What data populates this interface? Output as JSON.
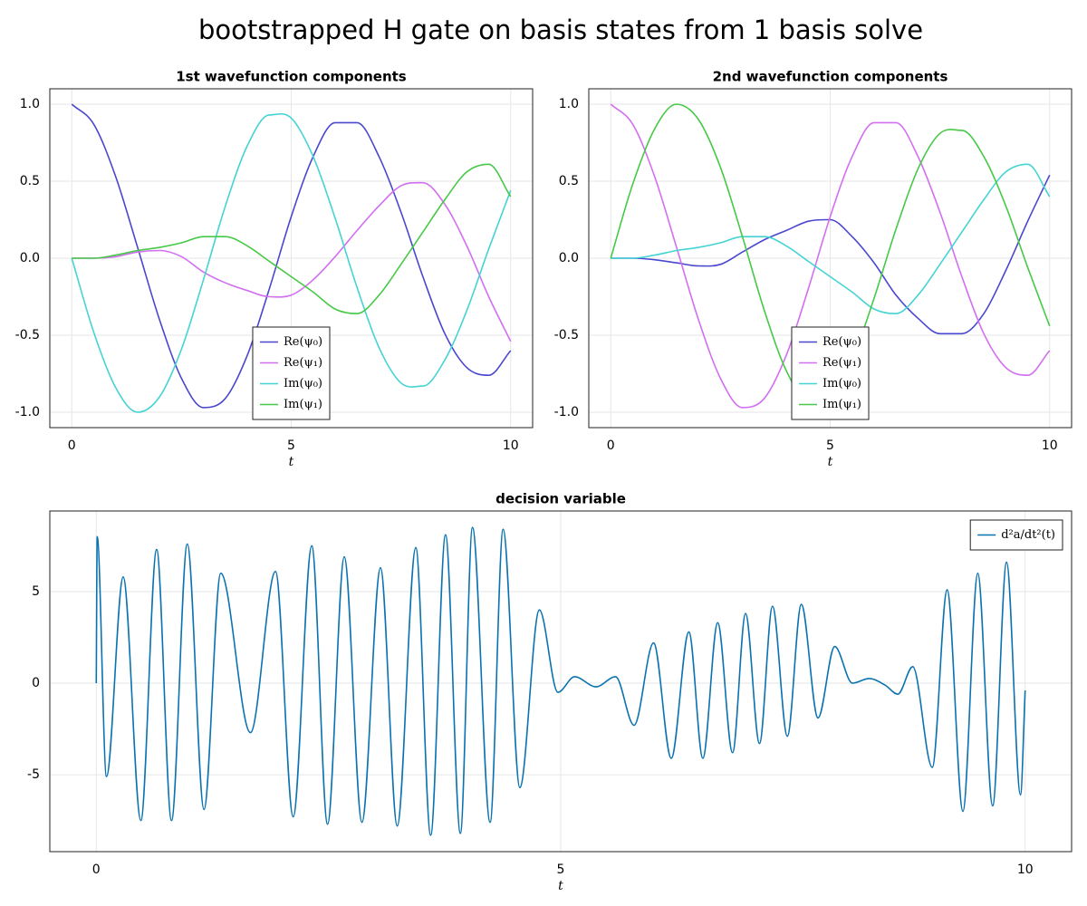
{
  "title": "bootstrapped H gate on basis states from 1 basis solve",
  "chart_data": [
    {
      "type": "line",
      "title": "1st wavefunction components",
      "xlabel": "t",
      "x": [
        0,
        0.5,
        1,
        1.5,
        2,
        2.5,
        3,
        3.5,
        4,
        4.5,
        5,
        5.5,
        6,
        6.5,
        7,
        7.5,
        8,
        8.5,
        9,
        9.5,
        10
      ],
      "series": [
        {
          "name": "Re(ψ₀)",
          "color": "#4a47cf",
          "values": [
            1.0,
            0.87,
            0.53,
            0.07,
            -0.4,
            -0.78,
            -0.97,
            -0.91,
            -0.63,
            -0.2,
            0.27,
            0.66,
            0.88,
            0.88,
            0.66,
            0.3,
            -0.12,
            -0.49,
            -0.71,
            -0.76,
            -0.6
          ]
        },
        {
          "name": "Re(ψ₁)",
          "color": "#d26ff0",
          "values": [
            0,
            0,
            0.01,
            0.04,
            0.05,
            0.01,
            -0.09,
            -0.16,
            -0.21,
            -0.25,
            -0.24,
            -0.14,
            0.01,
            0.18,
            0.34,
            0.47,
            0.49,
            0.35,
            0.08,
            -0.25,
            -0.54
          ]
        },
        {
          "name": "Im(ψ₀)",
          "color": "#45d3d3",
          "values": [
            0,
            -0.48,
            -0.84,
            -1.0,
            -0.9,
            -0.59,
            -0.14,
            0.34,
            0.73,
            0.93,
            0.91,
            0.66,
            0.26,
            -0.19,
            -0.58,
            -0.81,
            -0.83,
            -0.66,
            -0.34,
            0.06,
            0.44
          ]
        },
        {
          "name": "Im(ψ₁)",
          "color": "#46c946",
          "values": [
            0,
            0,
            0.02,
            0.05,
            0.07,
            0.1,
            0.14,
            0.14,
            0.08,
            -0.02,
            -0.12,
            -0.22,
            -0.33,
            -0.36,
            -0.24,
            -0.04,
            0.17,
            0.38,
            0.56,
            0.61,
            0.4
          ]
        }
      ],
      "xlim": [
        -0.5,
        10.5
      ],
      "ylim": [
        -1.1,
        1.1
      ],
      "xticks": [
        0,
        5,
        10
      ],
      "yticks": [
        {
          "value": -1,
          "label": "-1.0"
        },
        -0.5,
        {
          "value": 0,
          "label": "0.0"
        },
        0.5,
        {
          "value": 1,
          "label": "1.0"
        }
      ],
      "grid": true,
      "legend": "lower center"
    },
    {
      "type": "line",
      "title": "2nd wavefunction components",
      "xlabel": "t",
      "x": [
        0,
        0.5,
        1,
        1.5,
        2,
        2.5,
        3,
        3.5,
        4,
        4.5,
        5,
        5.5,
        6,
        6.5,
        7,
        7.5,
        8,
        8.5,
        9,
        9.5,
        10
      ],
      "series": [
        {
          "name": "Re(ψ₀)",
          "color": "#4a47cf",
          "values": [
            0,
            0,
            -0.01,
            -0.03,
            -0.05,
            -0.04,
            0.04,
            0.12,
            0.18,
            0.24,
            0.25,
            0.14,
            -0.03,
            -0.24,
            -0.39,
            -0.49,
            -0.49,
            -0.36,
            -0.08,
            0.24,
            0.54
          ]
        },
        {
          "name": "Re(ψ₁)",
          "color": "#d26ff0",
          "values": [
            1.0,
            0.87,
            0.53,
            0.07,
            -0.4,
            -0.78,
            -0.97,
            -0.91,
            -0.63,
            -0.2,
            0.27,
            0.66,
            0.88,
            0.88,
            0.66,
            0.3,
            -0.12,
            -0.49,
            -0.71,
            -0.76,
            -0.6
          ]
        },
        {
          "name": "Im(ψ₀)",
          "color": "#45d3d3",
          "values": [
            0,
            0,
            0.02,
            0.05,
            0.07,
            0.1,
            0.14,
            0.14,
            0.08,
            -0.02,
            -0.12,
            -0.22,
            -0.33,
            -0.36,
            -0.24,
            -0.04,
            0.17,
            0.38,
            0.56,
            0.61,
            0.4
          ]
        },
        {
          "name": "Im(ψ₁)",
          "color": "#46c946",
          "values": [
            0,
            0.48,
            0.84,
            1.0,
            0.9,
            0.59,
            0.14,
            -0.34,
            -0.73,
            -0.93,
            -0.91,
            -0.66,
            -0.26,
            0.19,
            0.58,
            0.81,
            0.83,
            0.66,
            0.34,
            -0.06,
            -0.44
          ]
        }
      ],
      "xlim": [
        -0.5,
        10.5
      ],
      "ylim": [
        -1.1,
        1.1
      ],
      "xticks": [
        0,
        5,
        10
      ],
      "yticks": [
        {
          "value": -1,
          "label": "-1.0"
        },
        -0.5,
        {
          "value": 0,
          "label": "0.0"
        },
        0.5,
        {
          "value": 1,
          "label": "1.0"
        }
      ],
      "grid": true,
      "legend": "lower center"
    },
    {
      "type": "line",
      "title": "decision variable",
      "xlabel": "t",
      "x": [
        0,
        0.01,
        0.11,
        0.29,
        0.48,
        0.65,
        0.81,
        0.98,
        1.16,
        1.34,
        1.66,
        1.93,
        2.12,
        2.32,
        2.49,
        2.67,
        2.86,
        3.06,
        3.24,
        3.44,
        3.6,
        3.76,
        3.92,
        4.05,
        4.24,
        4.38,
        4.56,
        4.77,
        4.97,
        5.15,
        5.38,
        5.59,
        5.79,
        6.0,
        6.19,
        6.38,
        6.53,
        6.69,
        6.85,
        6.99,
        7.14,
        7.28,
        7.44,
        7.59,
        7.77,
        7.95,
        8.14,
        8.32,
        8.49,
        8.63,
        8.79,
        9.0,
        9.16,
        9.33,
        9.49,
        9.65,
        9.8,
        9.95,
        10.0
      ],
      "series": [
        {
          "name": "d²a/dt²(t)",
          "color": "#0a72b0",
          "values": [
            0,
            8.0,
            -5.1,
            5.8,
            -7.5,
            7.3,
            -7.5,
            7.6,
            -6.9,
            6.0,
            -2.7,
            6.1,
            -7.3,
            7.5,
            -7.7,
            6.9,
            -7.6,
            6.3,
            -7.8,
            7.4,
            -8.3,
            8.1,
            -8.2,
            8.5,
            -7.6,
            8.4,
            -5.7,
            4.0,
            -0.5,
            0.35,
            -0.2,
            0.35,
            -2.3,
            2.2,
            -4.1,
            2.8,
            -4.1,
            3.3,
            -3.8,
            3.8,
            -3.3,
            4.2,
            -2.9,
            4.3,
            -1.9,
            2.0,
            0.0,
            0.25,
            -0.1,
            -0.6,
            0.9,
            -4.6,
            5.1,
            -7.0,
            6.0,
            -6.7,
            6.6,
            -6.1,
            -0.4
          ]
        }
      ],
      "xlim": [
        -0.5,
        10.5
      ],
      "ylim": [
        -9.2,
        9.4
      ],
      "xticks": [
        0,
        5,
        10
      ],
      "yticks": [
        -5,
        0,
        5
      ],
      "grid": true,
      "legend": "upper right"
    }
  ]
}
